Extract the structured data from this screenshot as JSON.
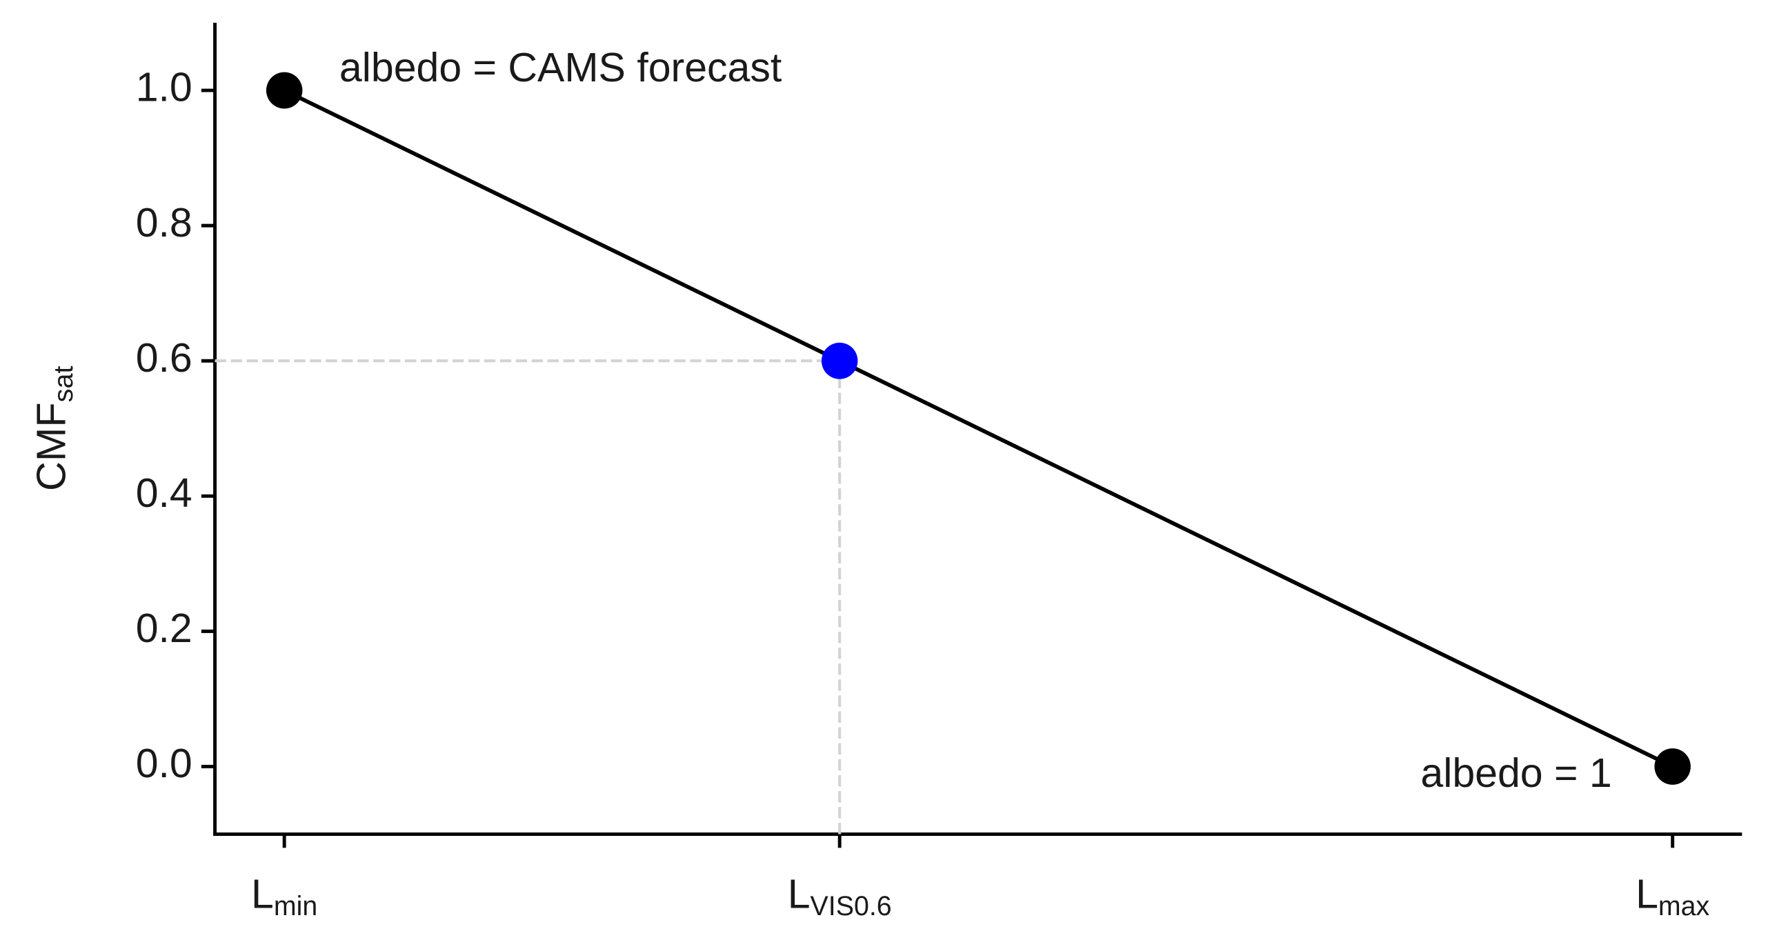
{
  "chart_data": {
    "type": "line",
    "ylabel": {
      "label": "CMF",
      "subscript": "sat"
    },
    "x": [
      0,
      0.4,
      1
    ],
    "xlim": [
      -0.05,
      1.05
    ],
    "xticks": [
      {
        "value": 0,
        "label": "L",
        "subscript": "min"
      },
      {
        "value": 0.4,
        "label": "L",
        "subscript": "VIS0.6"
      },
      {
        "value": 1,
        "label": "L",
        "subscript": "max"
      }
    ],
    "ylim": [
      -0.1,
      1.1
    ],
    "yticks": [
      {
        "value": 0,
        "label": "0.0"
      },
      {
        "value": 0.2,
        "label": "0.2"
      },
      {
        "value": 0.4,
        "label": "0.4"
      },
      {
        "value": 0.6,
        "label": "0.6"
      },
      {
        "value": 0.8,
        "label": "0.8"
      },
      {
        "value": 1,
        "label": "1.0"
      }
    ],
    "series": [
      {
        "values": [
          1,
          0.6,
          0
        ],
        "color": "#000000",
        "marker_colors": [
          "#000000",
          "#0000ff",
          "#000000"
        ]
      }
    ],
    "guide_color": "#d3d3d3",
    "annotations": [
      "albedo = CAMS forecast",
      "albedo = 1"
    ]
  }
}
